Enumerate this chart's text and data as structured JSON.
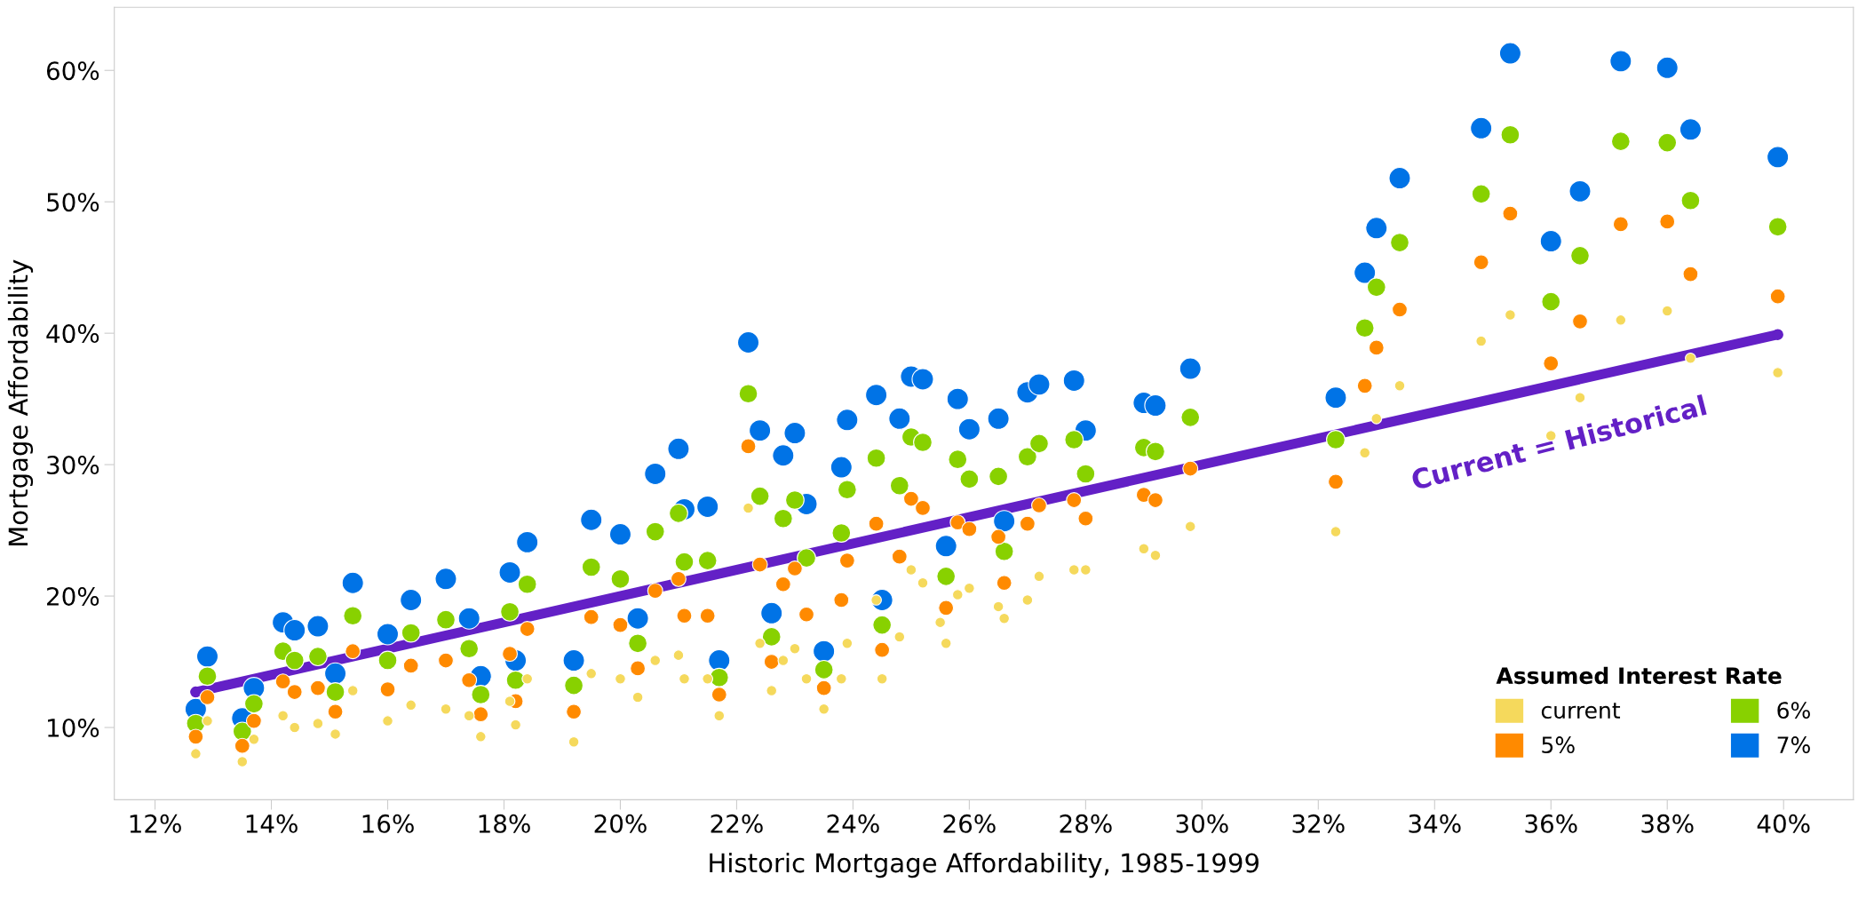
{
  "chart_data": {
    "type": "scatter",
    "xlabel": "Historic Mortgage Affordability, 1985-1999",
    "ylabel": "Mortgage Affordability",
    "legend_title": "Assumed Interest Rate",
    "x": [
      12.7,
      12.9,
      13.5,
      13.7,
      14.2,
      14.4,
      14.8,
      15.1,
      15.4,
      16.0,
      16.4,
      17.0,
      17.4,
      17.6,
      18.1,
      18.2,
      18.4,
      19.2,
      19.5,
      20.0,
      20.3,
      20.6,
      21.0,
      21.1,
      21.5,
      21.7,
      22.2,
      22.4,
      22.6,
      22.8,
      23.0,
      23.2,
      23.5,
      23.8,
      23.9,
      24.4,
      24.5,
      24.8,
      25.0,
      25.2,
      25.5,
      25.6,
      25.8,
      26.0,
      26.5,
      26.6,
      27.0,
      27.2,
      27.8,
      28.0,
      29.0,
      29.2,
      29.8,
      32.3,
      32.8,
      33.0,
      33.4,
      34.8,
      35.3,
      36.0,
      36.5,
      37.2,
      38.0,
      38.4,
      39.9
    ],
    "series": [
      {
        "name": "current",
        "color": "#f5d95c",
        "values": [
          8.0,
          10.5,
          7.4,
          9.1,
          10.9,
          10.0,
          10.3,
          9.5,
          12.8,
          10.5,
          11.7,
          11.4,
          10.9,
          9.3,
          12.0,
          10.2,
          13.7,
          8.9,
          14.1,
          13.7,
          12.3,
          15.1,
          15.5,
          13.7,
          13.7,
          10.9,
          26.7,
          16.4,
          12.8,
          15.1,
          16.0,
          13.7,
          11.4,
          13.7,
          16.4,
          19.7,
          13.7,
          16.9,
          22.0,
          21.0,
          18.0,
          16.4,
          20.1,
          20.6,
          19.2,
          18.3,
          19.7,
          21.5,
          22.0,
          22.0,
          23.6,
          23.1,
          25.3,
          24.9,
          30.9,
          33.5,
          36.0,
          39.4,
          41.4,
          32.2,
          35.1,
          41.0,
          41.7,
          38.1,
          37.0
        ]
      },
      {
        "name": "5%",
        "color": "#ff8a00",
        "values": [
          9.3,
          12.3,
          8.6,
          10.5,
          13.5,
          12.7,
          13.0,
          11.2,
          15.8,
          12.9,
          14.7,
          15.1,
          13.6,
          11.0,
          15.6,
          12.0,
          17.5,
          11.2,
          18.4,
          17.8,
          14.5,
          20.4,
          21.3,
          18.5,
          18.5,
          12.5,
          31.4,
          22.4,
          15.0,
          20.9,
          22.1,
          18.6,
          13.0,
          19.7,
          22.7,
          25.5,
          15.9,
          23.0,
          27.4,
          26.7,
          null,
          19.1,
          25.6,
          25.1,
          24.5,
          21.0,
          25.5,
          26.9,
          27.3,
          25.9,
          27.7,
          27.3,
          29.7,
          28.7,
          36.0,
          38.9,
          41.8,
          45.4,
          49.1,
          37.7,
          40.9,
          48.3,
          48.5,
          44.5,
          42.8
        ]
      },
      {
        "name": "6%",
        "color": "#88d100",
        "values": [
          10.3,
          13.9,
          9.7,
          11.8,
          15.8,
          15.1,
          15.4,
          12.7,
          18.5,
          15.1,
          17.2,
          18.2,
          16.0,
          12.5,
          18.8,
          13.6,
          20.9,
          13.2,
          22.2,
          21.3,
          16.4,
          24.9,
          26.3,
          22.6,
          22.7,
          13.8,
          35.4,
          27.6,
          16.9,
          25.9,
          27.3,
          22.9,
          14.4,
          24.8,
          28.1,
          30.5,
          17.8,
          28.4,
          32.1,
          31.7,
          null,
          21.5,
          30.4,
          28.9,
          29.1,
          23.4,
          30.6,
          31.6,
          31.9,
          29.3,
          31.3,
          31.0,
          33.6,
          31.9,
          40.4,
          43.5,
          46.9,
          50.6,
          55.1,
          42.4,
          45.9,
          54.6,
          54.5,
          50.1,
          48.1
        ]
      },
      {
        "name": "7%",
        "color": "#0073e6",
        "values": [
          11.4,
          15.4,
          10.7,
          13.0,
          18.0,
          17.4,
          17.7,
          14.1,
          21.0,
          17.1,
          19.7,
          21.3,
          18.3,
          13.9,
          21.8,
          15.1,
          24.1,
          15.1,
          25.8,
          24.7,
          18.3,
          29.3,
          31.2,
          26.6,
          26.8,
          15.1,
          39.3,
          32.6,
          18.7,
          30.7,
          32.4,
          27.0,
          15.8,
          29.8,
          33.4,
          35.3,
          19.7,
          33.5,
          36.7,
          36.5,
          null,
          23.8,
          35.0,
          32.7,
          33.5,
          25.7,
          35.5,
          36.1,
          36.4,
          32.6,
          34.7,
          34.5,
          37.3,
          35.1,
          44.6,
          48.0,
          51.8,
          55.6,
          61.3,
          47.0,
          50.8,
          60.7,
          60.2,
          55.5,
          53.4
        ]
      },
      {
        "name": "Current = Historical",
        "type": "line",
        "color": "#6320c6",
        "x": [
          12.7,
          39.9
        ],
        "values": [
          12.7,
          39.9
        ],
        "marker": "circle"
      }
    ],
    "xlim": [
      11.3,
      41.2
    ],
    "ylim": [
      4.5,
      64.8
    ],
    "xticks": [
      {
        "value": 12,
        "label": "12%"
      },
      {
        "value": 14,
        "label": "14%"
      },
      {
        "value": 16,
        "label": "16%"
      },
      {
        "value": 18,
        "label": "18%"
      },
      {
        "value": 20,
        "label": "20%"
      },
      {
        "value": 22,
        "label": "22%"
      },
      {
        "value": 24,
        "label": "24%"
      },
      {
        "value": 26,
        "label": "26%"
      },
      {
        "value": 28,
        "label": "28%"
      },
      {
        "value": 30,
        "label": "30%"
      },
      {
        "value": 32,
        "label": "32%"
      },
      {
        "value": 34,
        "label": "34%"
      },
      {
        "value": 36,
        "label": "36%"
      },
      {
        "value": 38,
        "label": "38%"
      },
      {
        "value": 40,
        "label": "40%"
      }
    ],
    "yticks": [
      {
        "value": 10,
        "label": "10%"
      },
      {
        "value": 20,
        "label": "20%"
      },
      {
        "value": 30,
        "label": "30%"
      },
      {
        "value": 40,
        "label": "40%"
      },
      {
        "value": 50,
        "label": "50%"
      },
      {
        "value": 60,
        "label": "60%"
      }
    ],
    "grid": false,
    "legend": "bottom right",
    "marker": "circle"
  }
}
